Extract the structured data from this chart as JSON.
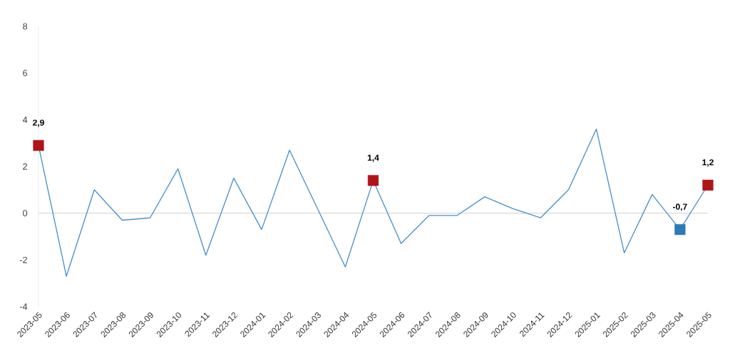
{
  "chart_data": {
    "type": "line",
    "categories": [
      "2023-05",
      "2023-06",
      "2023-07",
      "2023-08",
      "2023-09",
      "2023-10",
      "2023-11",
      "2023-12",
      "2024-01",
      "2024-02",
      "2024-03",
      "2024-04",
      "2024-05",
      "2024-06",
      "2024-07",
      "2024-08",
      "2024-09",
      "2024-10",
      "2024-11",
      "2024-12",
      "2025-01",
      "2025-02",
      "2025-03",
      "2025-04",
      "2025-05"
    ],
    "series": [
      {
        "color": "#4a90c8",
        "values": [
          2.9,
          -2.7,
          1.0,
          -0.3,
          -0.2,
          1.9,
          -1.8,
          1.5,
          -0.7,
          2.7,
          0.2,
          -2.3,
          1.4,
          -1.3,
          -0.1,
          -0.1,
          0.7,
          0.2,
          -0.2,
          1.0,
          3.6,
          -1.7,
          0.8,
          -0.7,
          1.2
        ]
      },
      {
        "type": "scatter",
        "marker": "square",
        "values": [
          2.9,
          null,
          null,
          null,
          null,
          null,
          null,
          null,
          null,
          null,
          null,
          null,
          1.4,
          null,
          null,
          null,
          null,
          null,
          null,
          null,
          null,
          null,
          null,
          -0.7,
          1.2
        ],
        "colors": [
          "#b01418",
          null,
          null,
          null,
          null,
          null,
          null,
          null,
          null,
          null,
          null,
          null,
          "#b01418",
          null,
          null,
          null,
          null,
          null,
          null,
          null,
          null,
          null,
          null,
          "#2e7ab8",
          "#b01418"
        ],
        "value_labels": [
          "2,9",
          null,
          null,
          null,
          null,
          null,
          null,
          null,
          null,
          null,
          null,
          null,
          "1,4",
          null,
          null,
          null,
          null,
          null,
          null,
          null,
          null,
          null,
          null,
          "-0,7",
          "1,2"
        ]
      }
    ],
    "ylim": [
      -4,
      8
    ],
    "yticks": [
      -4,
      -2,
      0,
      2,
      4,
      6,
      8
    ],
    "ref_lines": [
      {
        "axis": "y",
        "value": 0,
        "color": "#d9d9d9"
      }
    ]
  }
}
